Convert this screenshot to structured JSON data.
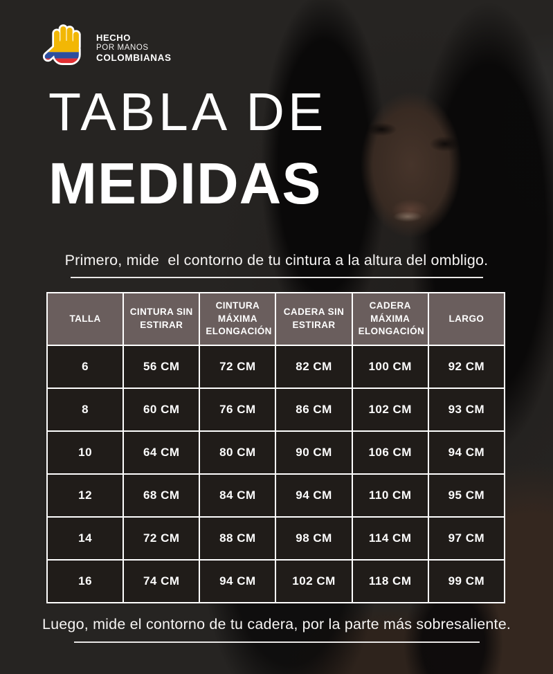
{
  "logo": {
    "line1": "HECHO",
    "line2": "POR MANOS",
    "line3": "COLOMBIANAS",
    "hand_colors": {
      "outline": "#FFFFFF",
      "yellow": "#F2B705",
      "blue": "#2D4E9E",
      "red": "#E22F33"
    }
  },
  "title": {
    "line1": "TABLA DE",
    "line2": "MEDIDAS"
  },
  "instructions": {
    "top": "Primero, mide  el contorno de tu cintura a la altura del ombligo.",
    "bottom": "Luego, mide el contorno de tu cadera, por la parte más sobresaliente."
  },
  "chart_data": {
    "type": "table",
    "title": "TABLA DE MEDIDAS",
    "columns": [
      "TALLA",
      "CINTURA SIN ESTIRAR",
      "CINTURA MÁXIMA ELONGACIÓN",
      "CADERA SIN ESTIRAR",
      "CADERA MÁXIMA ELONGACIÓN",
      "LARGO"
    ],
    "rows": [
      [
        "6",
        "56 CM",
        "72 CM",
        "82 CM",
        "100 CM",
        "92 CM"
      ],
      [
        "8",
        "60 CM",
        "76 CM",
        "86 CM",
        "102 CM",
        "93 CM"
      ],
      [
        "10",
        "64 CM",
        "80 CM",
        "90 CM",
        "106 CM",
        "94 CM"
      ],
      [
        "12",
        "68 CM",
        "84 CM",
        "94 CM",
        "110 CM",
        "95 CM"
      ],
      [
        "14",
        "72 CM",
        "88 CM",
        "98 CM",
        "114 CM",
        "97 CM"
      ],
      [
        "16",
        "74 CM",
        "94 CM",
        "102 CM",
        "118 CM",
        "99 CM"
      ]
    ]
  },
  "colors": {
    "page_bg": "#262422",
    "header_bg": "#6A5E5D",
    "cell_bg": "#201C19",
    "table_border": "#FFFFFF",
    "text": "#FFFFFF"
  }
}
